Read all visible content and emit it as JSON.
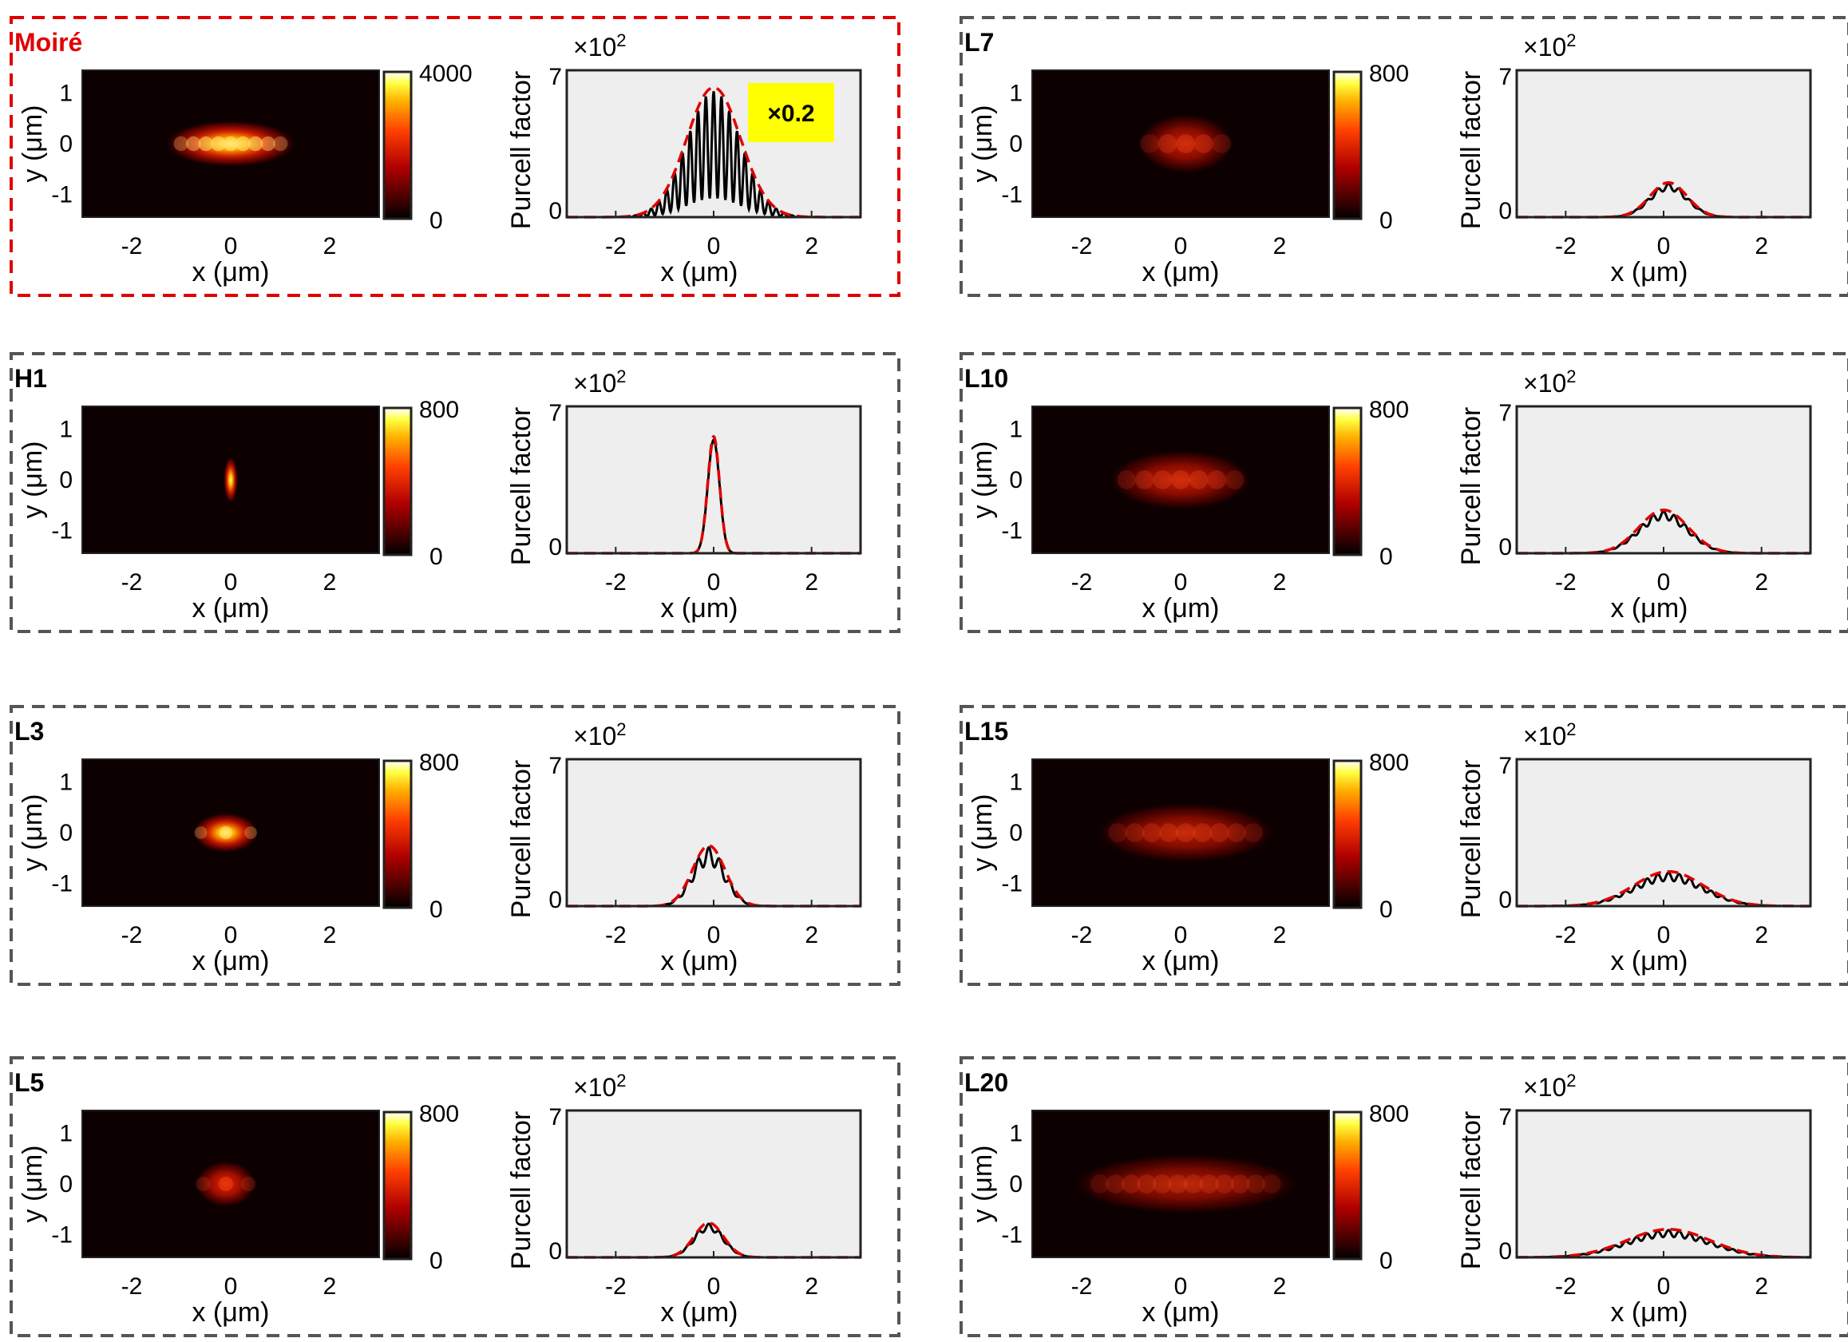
{
  "figure": {
    "x_axis_label": "x (μm)",
    "y_axis_label": "y (μm)",
    "purcell_axis_label": "Purcell factor",
    "purcell_scale_prefix": "×10",
    "purcell_scale_exponent": "2",
    "colors": {
      "highlight_border": "#e00000",
      "panel_border": "#555555",
      "plot_background": "#eeeeee",
      "fdtd_curve": "#000000",
      "fit_curve": "#e00000",
      "badge_background": "#ffff00"
    }
  },
  "chart_data": [
    {
      "type": "heatmap+line",
      "label": "Moiré",
      "highlight": true,
      "badge": "×0.2",
      "cbar_max": 4000,
      "cbar_max_label": "4000",
      "cbar_min_label": "0",
      "peak": 6.0,
      "sigma": 0.55,
      "center": 0.0,
      "fringe_period": 0.16,
      "fringe_depth": 0.85,
      "mode_half_x": 1.1,
      "mode_half_y": 0.35,
      "mode_brightness": 1.0
    },
    {
      "type": "heatmap+line",
      "label": "L7",
      "highlight": false,
      "badge": "",
      "cbar_max": 800,
      "cbar_max_label": "800",
      "cbar_min_label": "0",
      "peak": 1.6,
      "sigma": 0.38,
      "center": 0.1,
      "fringe_period": 0.22,
      "fringe_depth": 0.2,
      "mode_half_x": 0.8,
      "mode_half_y": 0.45,
      "mode_brightness": 0.45
    },
    {
      "type": "heatmap+line",
      "label": "H1",
      "highlight": false,
      "badge": "",
      "cbar_max": 800,
      "cbar_max_label": "800",
      "cbar_min_label": "0",
      "peak": 5.4,
      "sigma": 0.12,
      "center": 0.0,
      "fringe_period": 0.0,
      "fringe_depth": 0.0,
      "mode_half_x": 0.12,
      "mode_half_y": 0.35,
      "mode_brightness": 1.0
    },
    {
      "type": "heatmap+line",
      "label": "L10",
      "highlight": false,
      "badge": "",
      "cbar_max": 800,
      "cbar_max_label": "800",
      "cbar_min_label": "0",
      "peak": 2.0,
      "sigma": 0.5,
      "center": 0.0,
      "fringe_period": 0.22,
      "fringe_depth": 0.2,
      "mode_half_x": 1.2,
      "mode_half_y": 0.45,
      "mode_brightness": 0.45
    },
    {
      "type": "heatmap+line",
      "label": "L3",
      "highlight": false,
      "badge": "",
      "cbar_max": 800,
      "cbar_max_label": "800",
      "cbar_min_label": "0",
      "peak": 2.8,
      "sigma": 0.33,
      "center": -0.1,
      "fringe_period": 0.22,
      "fringe_depth": 0.3,
      "mode_half_x": 0.55,
      "mode_half_y": 0.3,
      "mode_brightness": 0.95
    },
    {
      "type": "heatmap+line",
      "label": "L15",
      "highlight": false,
      "badge": "",
      "cbar_max": 800,
      "cbar_max_label": "800",
      "cbar_min_label": "0",
      "peak": 1.6,
      "sigma": 0.7,
      "center": 0.1,
      "fringe_period": 0.22,
      "fringe_depth": 0.25,
      "mode_half_x": 1.5,
      "mode_half_y": 0.45,
      "mode_brightness": 0.4
    },
    {
      "type": "heatmap+line",
      "label": "L5",
      "highlight": false,
      "badge": "",
      "cbar_max": 800,
      "cbar_max_label": "800",
      "cbar_min_label": "0",
      "peak": 1.6,
      "sigma": 0.3,
      "center": -0.1,
      "fringe_period": 0.22,
      "fringe_depth": 0.2,
      "mode_half_x": 0.5,
      "mode_half_y": 0.35,
      "mode_brightness": 0.6
    },
    {
      "type": "heatmap+line",
      "label": "L20",
      "highlight": false,
      "badge": "",
      "cbar_max": 800,
      "cbar_max_label": "800",
      "cbar_min_label": "0",
      "peak": 1.3,
      "sigma": 0.85,
      "center": 0.1,
      "fringe_period": 0.22,
      "fringe_depth": 0.25,
      "mode_half_x": 1.9,
      "mode_half_y": 0.45,
      "mode_brightness": 0.35
    }
  ],
  "axes": {
    "heatmap": {
      "xlim": [
        -3,
        3
      ],
      "ylim": [
        -1.45,
        1.45
      ],
      "xticks": [
        -2,
        0,
        2
      ],
      "xtick_labels": [
        "-2",
        "0",
        "2"
      ],
      "yticks": [
        1,
        0,
        -1
      ],
      "ytick_labels": [
        "1",
        "0",
        "-1"
      ]
    },
    "purcell": {
      "xlim": [
        -3,
        3
      ],
      "ylim": [
        0,
        7
      ],
      "xticks": [
        -2,
        0,
        2
      ],
      "xtick_labels": [
        "-2",
        "0",
        "2"
      ],
      "yticks": [
        7,
        0
      ],
      "ytick_labels": [
        "7",
        "0"
      ]
    }
  }
}
